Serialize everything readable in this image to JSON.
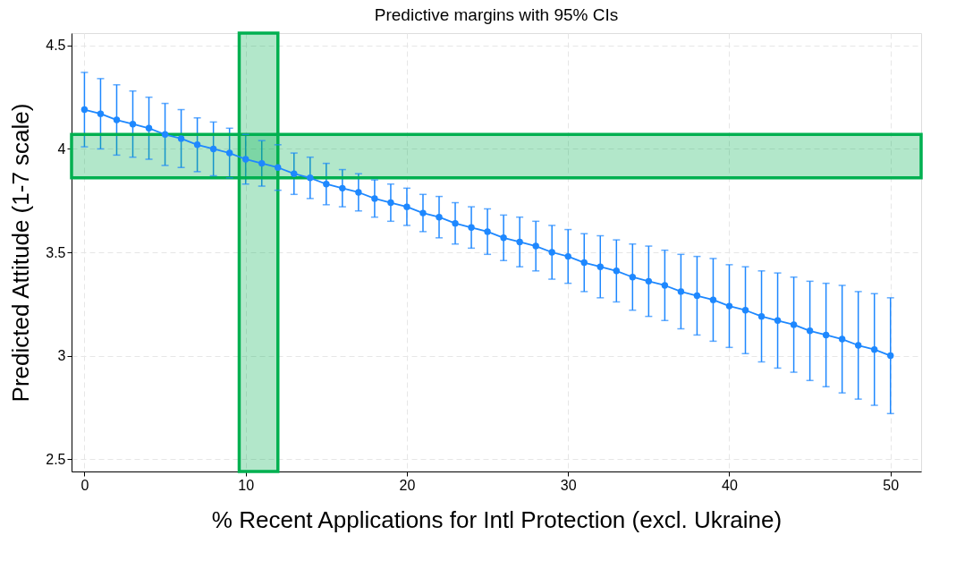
{
  "chart_data": {
    "type": "line",
    "title": "Predictive margins with 95% CIs",
    "xlabel": "% Recent Applications for Intl Protection (excl. Ukraine)",
    "ylabel": "Predicted Attitude (1-7 scale)",
    "x": [
      0,
      1,
      2,
      3,
      4,
      5,
      6,
      7,
      8,
      9,
      10,
      11,
      12,
      13,
      14,
      15,
      16,
      17,
      18,
      19,
      20,
      21,
      22,
      23,
      24,
      25,
      26,
      27,
      28,
      29,
      30,
      31,
      32,
      33,
      34,
      35,
      36,
      37,
      38,
      39,
      40,
      41,
      42,
      43,
      44,
      45,
      46,
      47,
      48,
      49,
      50
    ],
    "series": [
      {
        "color": "#1e88ff",
        "values": [
          4.19,
          4.17,
          4.14,
          4.12,
          4.1,
          4.07,
          4.05,
          4.02,
          4.0,
          3.98,
          3.95,
          3.93,
          3.91,
          3.88,
          3.86,
          3.83,
          3.81,
          3.79,
          3.76,
          3.74,
          3.72,
          3.69,
          3.67,
          3.64,
          3.62,
          3.6,
          3.57,
          3.55,
          3.53,
          3.5,
          3.48,
          3.45,
          3.43,
          3.41,
          3.38,
          3.36,
          3.34,
          3.31,
          3.29,
          3.27,
          3.24,
          3.22,
          3.19,
          3.17,
          3.15,
          3.12,
          3.1,
          3.08,
          3.05,
          3.03,
          3.0
        ],
        "errors": [
          0.18,
          0.17,
          0.17,
          0.16,
          0.15,
          0.15,
          0.14,
          0.13,
          0.13,
          0.12,
          0.12,
          0.11,
          0.11,
          0.1,
          0.1,
          0.1,
          0.09,
          0.09,
          0.09,
          0.09,
          0.09,
          0.09,
          0.1,
          0.1,
          0.1,
          0.11,
          0.11,
          0.12,
          0.12,
          0.13,
          0.13,
          0.14,
          0.15,
          0.15,
          0.16,
          0.17,
          0.17,
          0.18,
          0.19,
          0.2,
          0.2,
          0.21,
          0.22,
          0.23,
          0.23,
          0.24,
          0.25,
          0.26,
          0.26,
          0.27,
          0.28
        ]
      }
    ],
    "xlim": [
      -0.8,
      51.9
    ],
    "ylim": [
      2.44,
      4.56
    ],
    "xticks": [
      0,
      10,
      20,
      30,
      40,
      50
    ],
    "yticks": [
      2.5,
      3,
      3.5,
      4,
      4.5
    ],
    "bands": [
      {
        "axis": "x",
        "from": 9.6,
        "to": 12.0,
        "color": "#00b050"
      },
      {
        "axis": "y",
        "from": 3.86,
        "to": 4.07,
        "color": "#00b050"
      }
    ],
    "grid": true,
    "marker": "circle",
    "line_style": "solid",
    "legend": false
  }
}
